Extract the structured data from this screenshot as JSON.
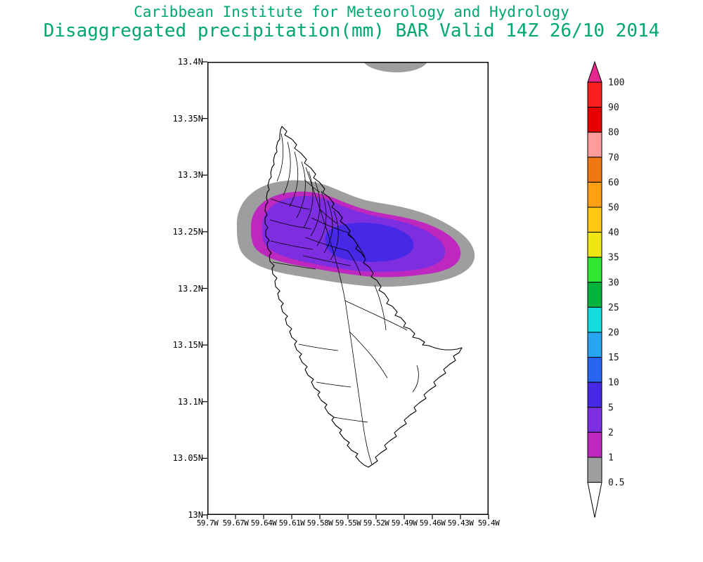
{
  "header": {
    "title_line1": "Caribbean Institute for Meteorology and Hydrology",
    "title_line2": "Disaggregated precipitation(mm) BAR Valid 14Z 26/10 2014",
    "title_color": "#00a86b"
  },
  "chart_data": {
    "type": "heatmap",
    "title": "Disaggregated precipitation(mm) BAR Valid 14Z 26/10 2014",
    "organization": "Caribbean Institute for Meteorology and Hydrology",
    "region": "BAR (Barbados)",
    "valid_time": "14Z 26/10 2014",
    "units": "mm",
    "x_axis": {
      "label": "",
      "ticks": [
        "59.7W",
        "59.67W",
        "59.64W",
        "59.61W",
        "59.58W",
        "59.55W",
        "59.52W",
        "59.49W",
        "59.46W",
        "59.43W",
        "59.4W"
      ],
      "range_west_deg": [
        59.7,
        59.4
      ]
    },
    "y_axis": {
      "label": "",
      "ticks": [
        "13.4N",
        "13.35N",
        "13.3N",
        "13.25N",
        "13.2N",
        "13.15N",
        "13.1N",
        "13.05N",
        "13N"
      ],
      "range_north_deg": [
        13.0,
        13.4
      ]
    },
    "grid": false,
    "legend_position": "right",
    "colorbar": {
      "labels": [
        "0.5",
        "1",
        "2",
        "5",
        "10",
        "15",
        "20",
        "25",
        "30",
        "35",
        "40",
        "50",
        "60",
        "70",
        "80",
        "90",
        "100"
      ],
      "levels_mm": [
        0.5,
        1,
        2,
        5,
        10,
        15,
        20,
        25,
        30,
        35,
        40,
        50,
        60,
        70,
        80,
        90,
        100
      ],
      "colors": [
        "#ffffff",
        "#9e9e9e",
        "#be28be",
        "#7d2ee0",
        "#4628e6",
        "#2864f0",
        "#28a5f0",
        "#14dcdc",
        "#00b43c",
        "#32e632",
        "#f0e614",
        "#ffc814",
        "#ffa014",
        "#f07814",
        "#ff9b9b",
        "#e60000",
        "#fa1e1e",
        "#e6288c"
      ],
      "arrow_above_color": "#e6288c",
      "arrow_below_color": "#ffffff"
    },
    "shaded_areas": [
      {
        "value_range_mm": "0.5-1",
        "color": "#9e9e9e",
        "location": "outer band across northern Barbados and adjacent ocean, approx 59.67W-59.44W, 13.19N-13.28N"
      },
      {
        "value_range_mm": "1-2",
        "color": "#be28be",
        "location": "ring inside the gray band over north-central Barbados"
      },
      {
        "value_range_mm": "2-5",
        "color": "#7d2ee0",
        "location": "broad area over north-central Barbados"
      },
      {
        "value_range_mm": "5-10",
        "color": "#4628e6",
        "location": "core maximum near 13.22N-13.25N, 59.50W-59.57W"
      },
      {
        "value_range_mm": "0.5-1",
        "color": "#9e9e9e",
        "location": "small area clipped at the top edge near 59.53W, 13.4N"
      }
    ],
    "max_shaded_value_mm": 10
  }
}
